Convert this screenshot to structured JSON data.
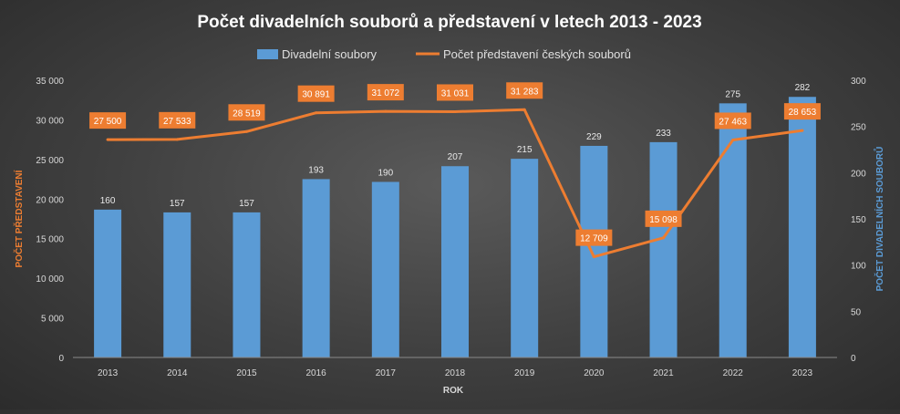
{
  "chart_data": {
    "type": "bar",
    "title": "Počet divadelních souborů a představení v letech 2013 - 2023",
    "xlabel": "ROK",
    "ylabel_left": "POČET PŘEDSTAVENÍ",
    "ylabel_right": "POČET DIVADELNÍCH SOUBORŮ",
    "categories": [
      "2013",
      "2014",
      "2015",
      "2016",
      "2017",
      "2018",
      "2019",
      "2020",
      "2021",
      "2022",
      "2023"
    ],
    "series": [
      {
        "name": "Divadelní soubory",
        "type": "bar",
        "axis": "right",
        "color": "#5b9bd5",
        "values": [
          160,
          157,
          157,
          193,
          190,
          207,
          215,
          229,
          233,
          275,
          282
        ],
        "labels": [
          "160",
          "157",
          "157",
          "193",
          "190",
          "207",
          "215",
          "229",
          "233",
          "275",
          "282"
        ]
      },
      {
        "name": "Počet představení českých souborů",
        "type": "line",
        "axis": "left",
        "color": "#ed7d31",
        "values": [
          27500,
          27533,
          28519,
          30891,
          31072,
          31031,
          31283,
          12709,
          15098,
          27463,
          28653
        ],
        "labels": [
          "27 500",
          "27 533",
          "28 519",
          "30 891",
          "31 072",
          "31 031",
          "31 283",
          "12 709",
          "15 098",
          "27 463",
          "28 653"
        ]
      }
    ],
    "ylim_left": [
      0,
      35000
    ],
    "yticks_left": [
      "0",
      "5 000",
      "10 000",
      "15 000",
      "20 000",
      "25 000",
      "30 000",
      "35 000"
    ],
    "ylim_right": [
      0,
      300
    ],
    "yticks_right": [
      "0",
      "50",
      "100",
      "150",
      "200",
      "250",
      "300"
    ],
    "legend_position": "top",
    "grid": false,
    "background": "dark"
  }
}
